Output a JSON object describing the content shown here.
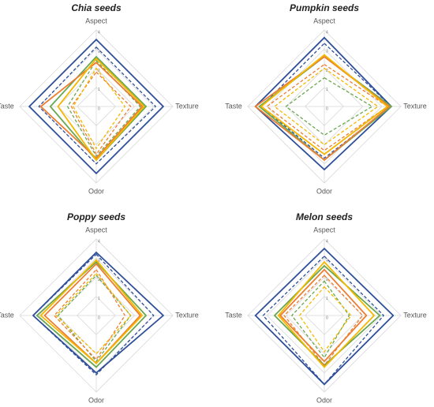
{
  "chart_data": [
    {
      "type": "radar",
      "title": "Chia seeds",
      "categories": [
        "Aspect",
        "Texture",
        "Odor",
        "Taste"
      ],
      "rlim": [
        0,
        4
      ],
      "rticks": [
        0,
        1,
        2,
        3,
        4
      ],
      "grid": true,
      "series": [
        {
          "color": "#2f4f9a",
          "dash": false,
          "values": [
            3.5,
            3.5,
            3.5,
            3.5
          ]
        },
        {
          "color": "#2f4f9a",
          "dash": true,
          "values": [
            3.1,
            3.1,
            3.0,
            3.0
          ]
        },
        {
          "color": "#6aa84f",
          "dash": false,
          "values": [
            2.6,
            2.6,
            2.8,
            2.4
          ]
        },
        {
          "color": "#6aa84f",
          "dash": true,
          "values": [
            2.4,
            2.3,
            2.6,
            1.5
          ]
        },
        {
          "color": "#ed7d31",
          "dash": false,
          "values": [
            2.3,
            2.4,
            2.7,
            2.9
          ]
        },
        {
          "color": "#ed7d31",
          "dash": true,
          "values": [
            1.8,
            1.8,
            2.5,
            1.3
          ]
        },
        {
          "color": "#f5b800",
          "dash": false,
          "values": [
            2.5,
            2.5,
            2.8,
            2.0
          ]
        },
        {
          "color": "#f5b800",
          "dash": true,
          "values": [
            2.0,
            1.5,
            2.2,
            1.2
          ]
        }
      ]
    },
    {
      "type": "radar",
      "title": "Pumpkin seeds",
      "categories": [
        "Aspect",
        "Texture",
        "Odor",
        "Taste"
      ],
      "rlim": [
        0,
        4
      ],
      "rticks": [
        0,
        1,
        2,
        3,
        4
      ],
      "grid": true,
      "series": [
        {
          "color": "#2f4f9a",
          "dash": false,
          "values": [
            3.6,
            3.5,
            3.3,
            3.6
          ]
        },
        {
          "color": "#2f4f9a",
          "dash": true,
          "values": [
            3.3,
            3.5,
            2.7,
            3.3
          ]
        },
        {
          "color": "#6aa84f",
          "dash": false,
          "values": [
            2.6,
            3.5,
            2.8,
            3.4
          ]
        },
        {
          "color": "#6aa84f",
          "dash": true,
          "values": [
            1.5,
            2.5,
            1.5,
            2.0
          ]
        },
        {
          "color": "#ed7d31",
          "dash": false,
          "values": [
            2.6,
            3.4,
            2.8,
            3.6
          ]
        },
        {
          "color": "#ed7d31",
          "dash": true,
          "values": [
            2.2,
            3.3,
            2.3,
            3.0
          ]
        },
        {
          "color": "#f5b800",
          "dash": false,
          "values": [
            2.7,
            3.3,
            2.5,
            3.3
          ]
        },
        {
          "color": "#f5b800",
          "dash": true,
          "values": [
            2.0,
            2.8,
            2.0,
            2.6
          ]
        }
      ]
    },
    {
      "type": "radar",
      "title": "Poppy seeds",
      "categories": [
        "Aspect",
        "Texture",
        "Odor",
        "Taste"
      ],
      "rlim": [
        0,
        4
      ],
      "rticks": [
        0,
        1,
        2,
        3,
        4
      ],
      "grid": true,
      "series": [
        {
          "color": "#2f4f9a",
          "dash": false,
          "values": [
            3.3,
            3.5,
            3.0,
            3.3
          ]
        },
        {
          "color": "#2f4f9a",
          "dash": true,
          "values": [
            3.2,
            3.0,
            3.1,
            3.3
          ]
        },
        {
          "color": "#6aa84f",
          "dash": false,
          "values": [
            2.8,
            2.6,
            2.7,
            3.1
          ]
        },
        {
          "color": "#6aa84f",
          "dash": true,
          "values": [
            2.1,
            1.8,
            2.4,
            2.0
          ]
        },
        {
          "color": "#ed7d31",
          "dash": false,
          "values": [
            2.7,
            2.3,
            2.5,
            2.7
          ]
        },
        {
          "color": "#ed7d31",
          "dash": true,
          "values": [
            2.4,
            1.5,
            2.3,
            2.2
          ]
        },
        {
          "color": "#f5b800",
          "dash": false,
          "values": [
            2.9,
            2.4,
            2.5,
            2.9
          ]
        },
        {
          "color": "#f5b800",
          "dash": true,
          "values": [
            2.2,
            1.8,
            2.0,
            2.1
          ]
        }
      ]
    },
    {
      "type": "radar",
      "title": "Melon seeds",
      "categories": [
        "Aspect",
        "Texture",
        "Odor",
        "Taste"
      ],
      "rlim": [
        0,
        4
      ],
      "rticks": [
        0,
        1,
        2,
        3,
        4
      ],
      "grid": true,
      "series": [
        {
          "color": "#2f4f9a",
          "dash": false,
          "values": [
            3.5,
            3.6,
            3.6,
            3.6
          ]
        },
        {
          "color": "#2f4f9a",
          "dash": true,
          "values": [
            3.1,
            3.1,
            3.6,
            3.2
          ]
        },
        {
          "color": "#6aa84f",
          "dash": false,
          "values": [
            2.6,
            2.9,
            2.6,
            2.6
          ]
        },
        {
          "color": "#6aa84f",
          "dash": true,
          "values": [
            1.8,
            1.3,
            2.2,
            1.7
          ]
        },
        {
          "color": "#ed7d31",
          "dash": false,
          "values": [
            2.4,
            2.2,
            2.4,
            2.3
          ]
        },
        {
          "color": "#ed7d31",
          "dash": true,
          "values": [
            2.1,
            2.0,
            2.6,
            2.1
          ]
        },
        {
          "color": "#f5b800",
          "dash": false,
          "values": [
            2.8,
            2.6,
            2.7,
            2.4
          ]
        },
        {
          "color": "#f5b800",
          "dash": true,
          "values": [
            1.5,
            1.4,
            1.9,
            1.3
          ]
        }
      ]
    }
  ]
}
